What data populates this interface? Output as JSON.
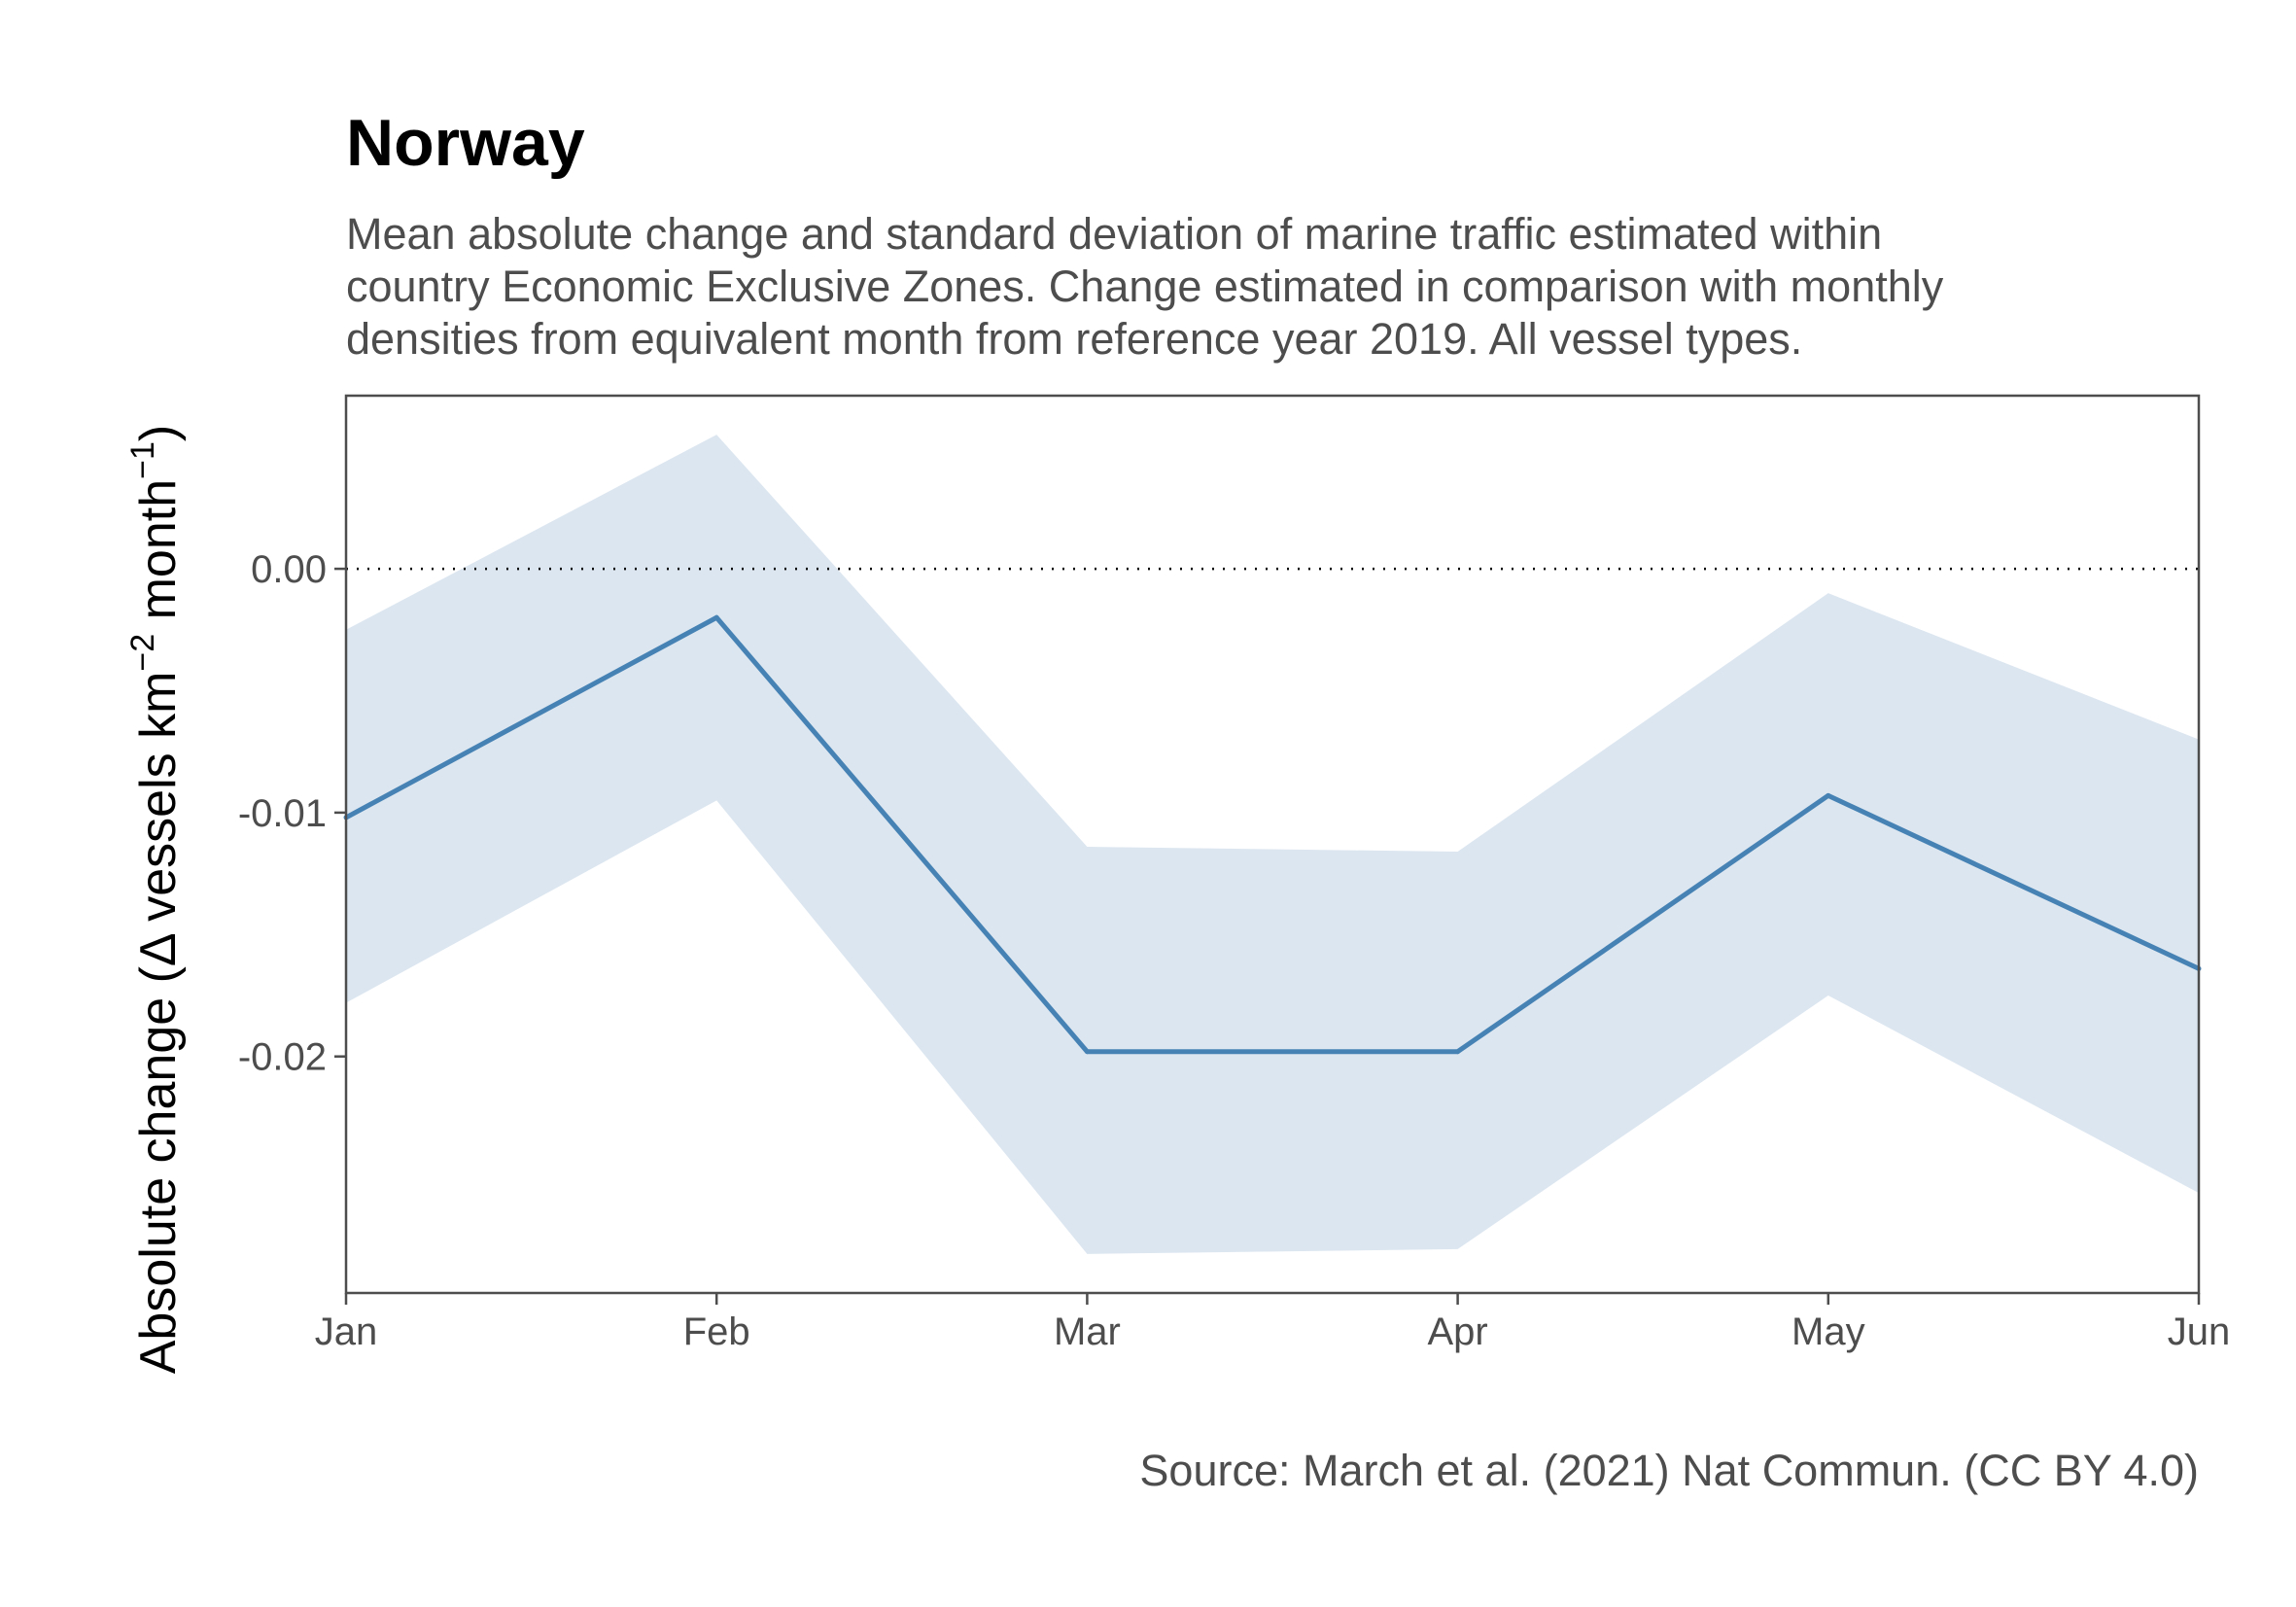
{
  "chart_data": {
    "type": "line",
    "title": "Norway",
    "subtitle_lines": [
      "Mean absolute change and standard deviation of marine traffic estimated within",
      "country Economic Exclusive Zones. Change estimated in comparison with monthly",
      "densities from equivalent month from reference year 2019. All vessel types."
    ],
    "ylabel": {
      "prefix": "Absolute change (",
      "delta": "Δ",
      "vessels_km": " vessels km",
      "sup1": "−2",
      "month": " month",
      "sup2": "−1",
      "close": ")"
    },
    "xlabel": "",
    "caption": "Source: March et al. (2021) Nat Commun. (CC BY 4.0)",
    "categories": [
      "Jan",
      "Feb",
      "Mar",
      "Apr",
      "May",
      "Jun"
    ],
    "series": [
      {
        "values": [
          -0.0102,
          -0.002,
          -0.0198,
          -0.0198,
          -0.0093,
          -0.0164
        ],
        "lower": [
          -0.0178,
          -0.0095,
          -0.0281,
          -0.0279,
          -0.0175,
          -0.0256
        ],
        "upper": [
          -0.0025,
          0.0055,
          -0.0114,
          -0.0116,
          -0.001,
          -0.007
        ]
      }
    ],
    "yticks": [
      0.0,
      -0.01,
      -0.02
    ],
    "ytick_labels": [
      "0.00",
      "-0.01",
      "-0.02"
    ],
    "ylim": [
      -0.0297,
      0.0071
    ],
    "reference_line": 0,
    "grid": false,
    "colors": {
      "line": "#4682b4",
      "band": "#dce6f0",
      "reference": "#000000",
      "frame": "#4d4d4d"
    }
  }
}
